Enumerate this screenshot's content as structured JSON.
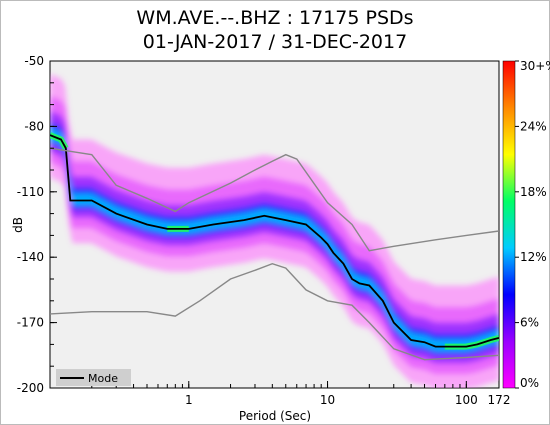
{
  "chart_data": {
    "type": "heatmap",
    "title": "WM.AVE.--.BHZ : 17175 PSDs",
    "subtitle": "01-JAN-2017 / 31-DEC-2017",
    "xlabel": "Period (Sec)",
    "ylabel": "dB",
    "x_scale": "log",
    "xlim": [
      0.1,
      172
    ],
    "ylim": [
      -200,
      -50
    ],
    "x_ticks": [
      {
        "value": 1,
        "label": "1"
      },
      {
        "value": 10,
        "label": "10"
      },
      {
        "value": 100,
        "label": "100"
      },
      {
        "value": 172,
        "label": "172"
      }
    ],
    "y_ticks": [
      {
        "value": -50,
        "label": "-50"
      },
      {
        "value": -80,
        "label": "-80"
      },
      {
        "value": -110,
        "label": "-110"
      },
      {
        "value": -140,
        "label": "-140"
      },
      {
        "value": -170,
        "label": "-170"
      },
      {
        "value": -200,
        "label": "-200"
      }
    ],
    "colorbar": {
      "colors": [
        "#ff00ff",
        "#9900ff",
        "#0000ff",
        "#00ccff",
        "#00ff66",
        "#ffff00",
        "#ff8800",
        "#ff0000"
      ],
      "ticks": [
        {
          "value": 0,
          "label": "0%"
        },
        {
          "value": 6,
          "label": "6%"
        },
        {
          "value": 12,
          "label": "12%"
        },
        {
          "value": 18,
          "label": "18%"
        },
        {
          "value": 24,
          "label": "24%"
        },
        {
          "value": 30,
          "label": "30+%"
        }
      ]
    },
    "legend": {
      "position": "bottom-left",
      "entries": [
        {
          "name": "Mode",
          "color": "#000000"
        }
      ]
    },
    "series": [
      {
        "name": "Mode",
        "color": "#000000",
        "x": [
          0.1,
          0.12,
          0.13,
          0.14,
          0.2,
          0.3,
          0.5,
          0.7,
          1,
          1.5,
          2.5,
          3.5,
          5,
          7,
          9,
          10,
          11,
          13,
          15,
          17,
          20,
          25,
          30,
          40,
          50,
          60,
          80,
          100,
          120,
          150,
          172
        ],
        "y": [
          -84,
          -86,
          -90,
          -114,
          -114,
          -120,
          -125,
          -127,
          -127,
          -125,
          -123,
          -121,
          -123,
          -125,
          -131,
          -134,
          -138,
          -143,
          -150,
          -152,
          -153,
          -160,
          -170,
          -178,
          -179,
          -181,
          -181,
          -181,
          -180,
          -178,
          -177
        ]
      },
      {
        "name": "",
        "color": "#888888",
        "x": [
          0.1,
          0.2,
          0.3,
          0.5,
          0.8,
          1,
          2,
          3,
          4,
          5,
          6,
          10,
          15,
          20,
          30,
          60,
          100,
          172
        ],
        "y": [
          -90,
          -93,
          -107,
          -113,
          -119,
          -115,
          -106,
          -100,
          -96,
          -93,
          -95,
          -115,
          -125,
          -137,
          -135,
          -132,
          -130,
          -128
        ]
      },
      {
        "name": "",
        "color": "#888888",
        "x": [
          0.1,
          0.2,
          0.5,
          0.8,
          1.2,
          2,
          3,
          4,
          5,
          7,
          10,
          15,
          20,
          30,
          50,
          100,
          172
        ],
        "y": [
          -166,
          -165,
          -165,
          -167,
          -160,
          -150,
          -146,
          -143,
          -145,
          -155,
          -160,
          -162,
          -170,
          -182,
          -187,
          -186,
          -185
        ]
      }
    ]
  }
}
